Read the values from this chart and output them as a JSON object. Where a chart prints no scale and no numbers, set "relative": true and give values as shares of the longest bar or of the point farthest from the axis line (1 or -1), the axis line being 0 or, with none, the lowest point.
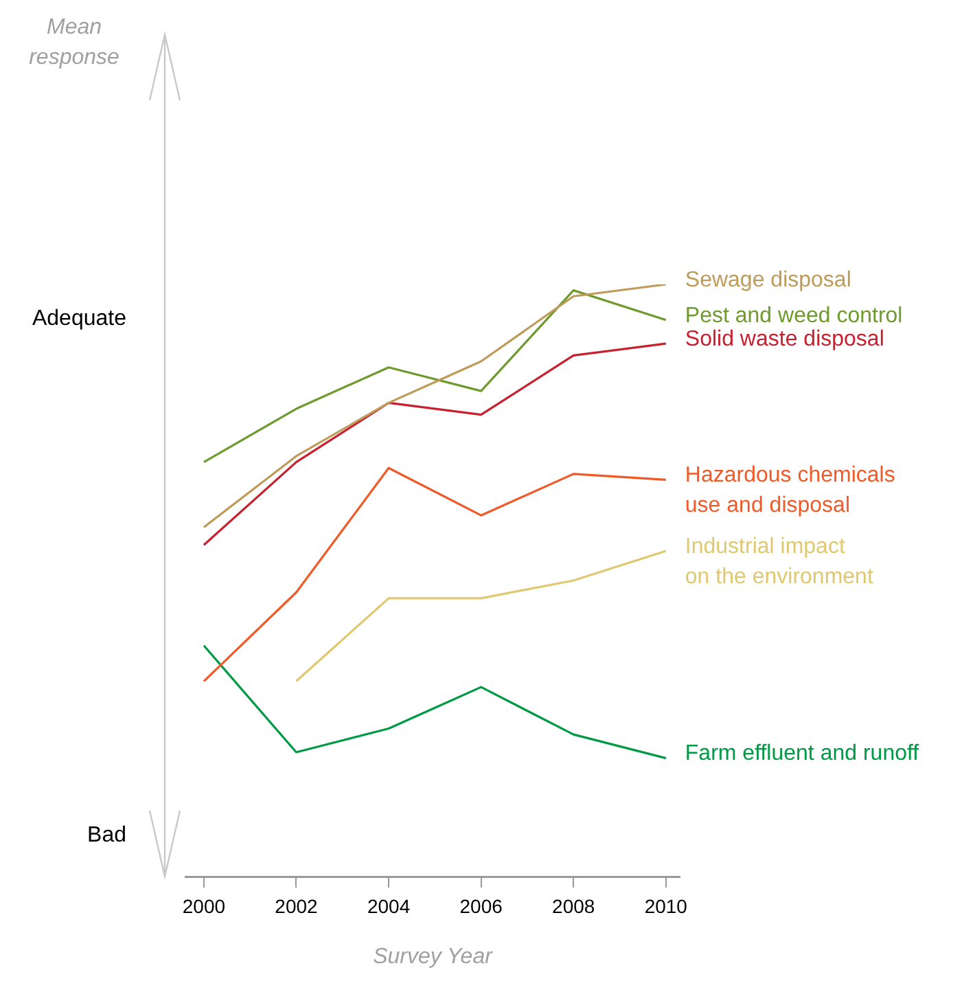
{
  "chart_data": {
    "type": "line",
    "relative": true,
    "xlabel": "Survey Year",
    "x": [
      2000,
      2002,
      2004,
      2006,
      2008,
      2010
    ],
    "xlim": [
      1999.6,
      2010.3
    ],
    "xticks": [
      2000,
      2002,
      2004,
      2006,
      2008,
      2010
    ],
    "grid": false,
    "marker": "none",
    "line_style": "solid",
    "annotations": [
      "Mean response",
      "Adequate",
      "Bad"
    ],
    "series": [
      {
        "name": "Sewage disposal",
        "color": "#bf9b5a",
        "values": [
          0.59,
          0.71,
          0.8,
          0.87,
          0.98,
          1.0
        ]
      },
      {
        "name": "Pest and weed control",
        "color": "#6e9a2e",
        "values": [
          0.7,
          0.79,
          0.86,
          0.82,
          0.99,
          0.94
        ]
      },
      {
        "name": "Solid waste disposal",
        "color": "#c8202e",
        "values": [
          0.56,
          0.7,
          0.8,
          0.78,
          0.88,
          0.9
        ]
      },
      {
        "name": "Hazardous chemicals use and disposal",
        "color": "#f05a28",
        "values": [
          0.33,
          0.48,
          0.69,
          0.61,
          0.68,
          0.67
        ]
      },
      {
        "name": "Industrial impact on the environment",
        "color": "#e0c870",
        "values": [
          null,
          0.33,
          0.47,
          0.47,
          0.5,
          0.55
        ]
      },
      {
        "name": "Farm effluent and runoff",
        "color": "#009a44",
        "values": [
          0.39,
          0.21,
          0.25,
          0.32,
          0.24,
          0.2
        ]
      }
    ]
  }
}
